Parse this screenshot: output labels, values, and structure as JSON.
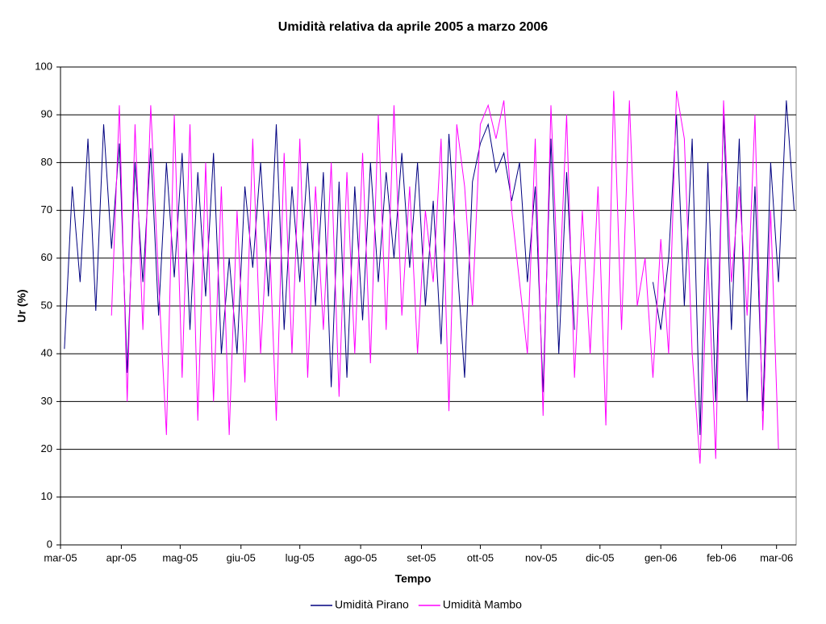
{
  "chart_data": {
    "type": "line",
    "title": "Umidità relativa da aprile 2005 a marzo 2006",
    "x_label": "Tempo",
    "y_label": "Ur (%)",
    "legend": "bottom",
    "grid": true,
    "xlim": [
      0,
      375
    ],
    "ylim": [
      0,
      100
    ],
    "yticks": [
      0,
      10,
      20,
      30,
      40,
      50,
      60,
      70,
      80,
      90,
      100
    ],
    "xticks": [
      {
        "value": 0,
        "label": "mar-05"
      },
      {
        "value": 31,
        "label": "apr-05"
      },
      {
        "value": 61,
        "label": "mag-05"
      },
      {
        "value": 92,
        "label": "giu-05"
      },
      {
        "value": 122,
        "label": "lug-05"
      },
      {
        "value": 153,
        "label": "ago-05"
      },
      {
        "value": 184,
        "label": "set-05"
      },
      {
        "value": 214,
        "label": "ott-05"
      },
      {
        "value": 245,
        "label": "nov-05"
      },
      {
        "value": 275,
        "label": "dic-05"
      },
      {
        "value": 306,
        "label": "gen-06"
      },
      {
        "value": 337,
        "label": "feb-06"
      },
      {
        "value": 365,
        "label": "mar-06"
      }
    ],
    "x": [
      2,
      6,
      10,
      14,
      18,
      22,
      26,
      30,
      34,
      38,
      42,
      46,
      50,
      54,
      58,
      62,
      66,
      70,
      74,
      78,
      82,
      86,
      90,
      94,
      98,
      102,
      106,
      110,
      114,
      118,
      122,
      126,
      130,
      134,
      138,
      142,
      146,
      150,
      154,
      158,
      162,
      166,
      170,
      174,
      178,
      182,
      186,
      190,
      194,
      198,
      202,
      206,
      210,
      214,
      218,
      222,
      226,
      230,
      234,
      238,
      242,
      246,
      250,
      254,
      258,
      262,
      266,
      270,
      274,
      278,
      282,
      286,
      290,
      294,
      298,
      302,
      306,
      310,
      314,
      318,
      322,
      326,
      330,
      334,
      338,
      342,
      346,
      350,
      354,
      358,
      362,
      366,
      370,
      374
    ],
    "series": [
      {
        "name": "Umidità Pirano",
        "color": "#000080",
        "values": [
          41,
          75,
          55,
          85,
          49,
          88,
          62,
          84,
          36,
          80,
          55,
          83,
          48,
          80,
          56,
          82,
          45,
          78,
          52,
          82,
          40,
          60,
          40,
          75,
          58,
          80,
          52,
          88,
          45,
          75,
          55,
          80,
          50,
          78,
          33,
          76,
          35,
          75,
          47,
          80,
          55,
          78,
          60,
          82,
          58,
          80,
          50,
          72,
          42,
          86,
          60,
          35,
          76,
          84,
          88,
          78,
          82,
          72,
          80,
          55,
          75,
          32,
          85,
          40,
          78,
          45,
          null,
          null,
          null,
          null,
          null,
          null,
          null,
          null,
          null,
          55,
          45,
          60,
          90,
          50,
          85,
          23,
          80,
          30,
          90,
          45,
          85,
          30,
          75,
          28,
          80,
          55,
          93,
          70
        ]
      },
      {
        "name": "Umidità Mambo",
        "color": "#ff00ff",
        "values": [
          null,
          null,
          null,
          null,
          null,
          null,
          48,
          92,
          30,
          88,
          45,
          92,
          55,
          23,
          90,
          35,
          88,
          26,
          80,
          30,
          75,
          23,
          70,
          34,
          85,
          40,
          70,
          26,
          82,
          40,
          85,
          35,
          75,
          45,
          80,
          31,
          78,
          40,
          82,
          38,
          90,
          45,
          92,
          48,
          75,
          40,
          70,
          55,
          85,
          28,
          88,
          75,
          50,
          88,
          92,
          85,
          93,
          70,
          55,
          40,
          85,
          27,
          92,
          50,
          90,
          35,
          70,
          40,
          75,
          25,
          95,
          45,
          93,
          50,
          60,
          35,
          64,
          40,
          95,
          85,
          40,
          17,
          60,
          18,
          93,
          55,
          75,
          48,
          90,
          24,
          70,
          20,
          null,
          null
        ]
      }
    ]
  }
}
